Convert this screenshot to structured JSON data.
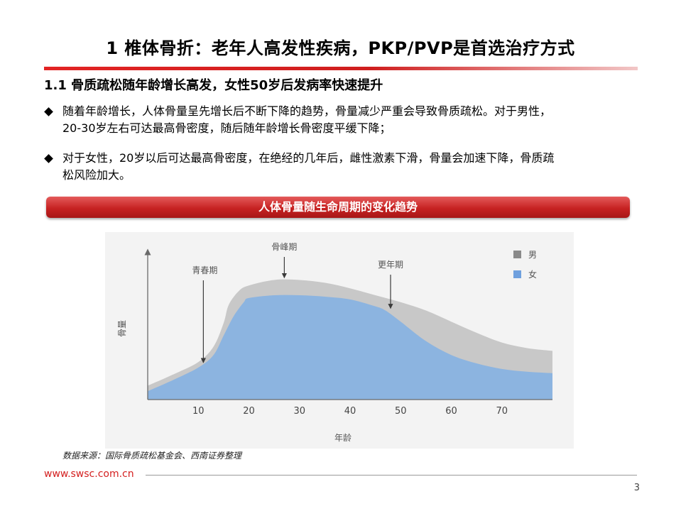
{
  "slide": {
    "title": "1  椎体骨折：老年人高发性疾病，PKP/PVP是首选治疗方式",
    "section_heading": "1.1 骨质疏松随年龄增长高发，女性50岁后发病率快速提升",
    "bullets": [
      {
        "line1": "随着年龄增长，人体骨量呈先增长后不断下降的趋势，骨量减少严重会导致骨质疏松。对于男性，",
        "line2": "20-30岁左右可达最高骨密度，随后随年龄增长骨密度平缓下降；"
      },
      {
        "line1": "对于女性，20岁以后可达最高骨密度，在绝经的几年后，雌性激素下滑，骨量会加速下降，骨质疏",
        "line2": "松风险加大。"
      }
    ],
    "chart_banner": "人体骨量随生命周期的变化趋势",
    "source_note": "数据来源：国际骨质疏松基金会、西南证券整理",
    "site_url": "www.swsc.com.cn",
    "page_number": "3"
  },
  "chart_data": {
    "type": "area",
    "xlabel": "年龄",
    "ylabel": "骨量",
    "x_ticks": [
      10,
      20,
      30,
      40,
      50,
      60,
      70
    ],
    "xlim": [
      0,
      80
    ],
    "ylim": [
      0,
      100
    ],
    "legend": {
      "placement": "top-right"
    },
    "series": [
      {
        "name": "男",
        "color": "#c8c8c8",
        "x": [
          0,
          5,
          10,
          13,
          15,
          16,
          18,
          20,
          25,
          30,
          35,
          40,
          45,
          50,
          55,
          60,
          65,
          70,
          75,
          80
        ],
        "y": [
          10,
          18,
          27,
          38,
          55,
          68,
          78,
          82,
          86,
          86,
          84,
          80,
          75,
          70,
          64,
          56,
          48,
          41,
          37,
          35
        ]
      },
      {
        "name": "女",
        "color": "#8cb4e0",
        "x": [
          0,
          5,
          10,
          13,
          15,
          17,
          19,
          20,
          25,
          30,
          35,
          40,
          45,
          47,
          50,
          55,
          60,
          65,
          70,
          75,
          80
        ],
        "y": [
          6,
          14,
          23,
          32,
          46,
          60,
          70,
          73,
          75,
          75,
          74,
          72,
          67,
          64,
          56,
          42,
          32,
          26,
          22,
          20,
          19
        ]
      }
    ],
    "annotations": [
      {
        "text": "青春期",
        "x": 11,
        "arrow_to_y": 25
      },
      {
        "text": "骨峰期",
        "x": 27,
        "arrow_to_y": 86
      },
      {
        "text": "更年期",
        "x": 48,
        "arrow_to_y": 64
      }
    ]
  }
}
